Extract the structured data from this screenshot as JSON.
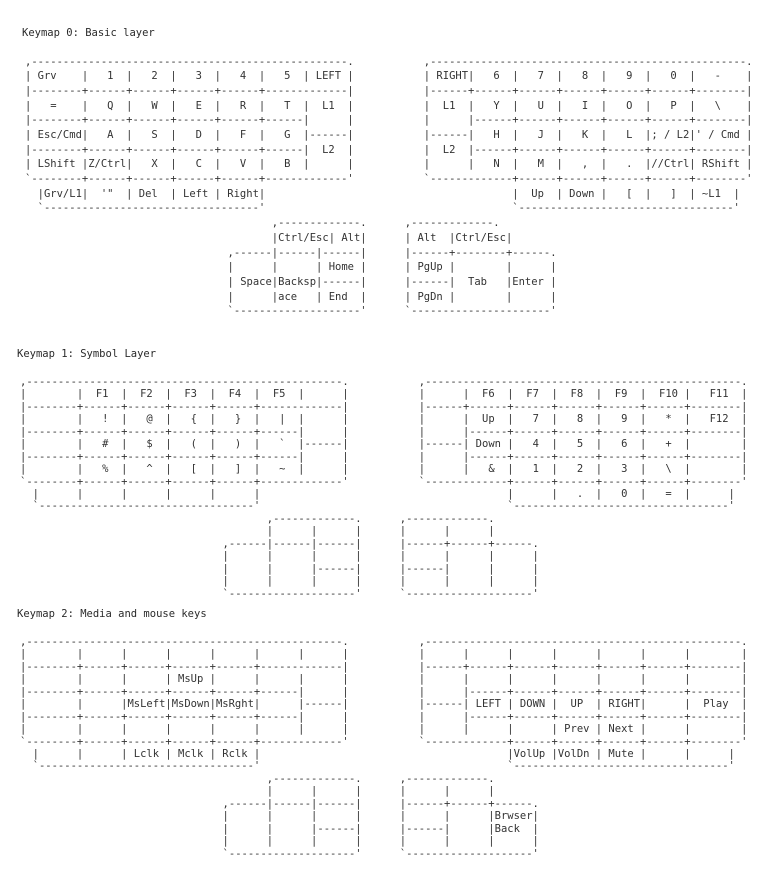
{
  "layers": [
    {
      "title": "Keymap 0: Basic layer",
      "left_hand": [
        ",--------------------------------------------------.",
        "| Grv    |   1  |   2  |   3  |   4  |   5  | LEFT |",
        "|--------+------+------+------+------+-------------|",
        "|   =    |   Q  |   W  |   E  |   R  |   T  |  L1  |",
        "|--------+------+------+------+------+------|      |",
        "| Esc/Cmd|   A  |   S  |   D  |   F  |   G  |------|",
        "|--------+------+------+------+------+------|  L2  |",
        "| LShift |Z/Ctrl|   X  |   C  |   V  |   B  |      |",
        "`--------+------+------+------+------+-------------'",
        "  |Grv/L1|  '\"  | Del  | Left | Right|",
        "  `----------------------------------'"
      ],
      "right_hand": [
        ",--------------------------------------------------.",
        "| RIGHT|   6  |   7  |   8  |   9  |   0  |   -    |",
        "|------+------+------+------+------+------+--------|",
        "|  L1  |   Y  |   U  |   I  |   O  |   P  |   \\    |",
        "|      |------+------+------+------+------+--------|",
        "|------|   H  |   J  |   K  |   L  |; / L2|' / Cmd |",
        "|  L2  |------+------+------+------+------+--------|",
        "|      |   N  |   M  |   ,  |   .  |//Ctrl| RShift |",
        "`-------------+------+------+------+------+--------'",
        "              |  Up  | Down |   [  |   ]  | ~L1  |",
        "              `----------------------------------'"
      ],
      "left_thumb": [
        "       ,-------------.",
        "       |Ctrl/Esc| Alt|",
        ",------|------|------|",
        "|      |      | Home |",
        "| Space|Backsp|------|",
        "|      |ace   | End  |",
        "`--------------------'"
      ],
      "right_thumb": [
        ",-------------.",
        "| Alt  |Ctrl/Esc|",
        "|------+--------+------.",
        "| PgUp |        |      |",
        "|------|  Tab   |Enter |",
        "| PgDn |        |      |",
        "`----------------------'"
      ]
    },
    {
      "title": "Keymap 1: Symbol Layer",
      "left_hand": [
        ",--------------------------------------------------.",
        "|        |  F1  |  F2  |  F3  |  F4  |  F5  |      |",
        "|--------+------+------+------+------+-------------|",
        "|        |   !  |   @  |   {  |   }  |   |  |      |",
        "|--------+------+------+------+------+------|      |",
        "|        |   #  |   $  |   (  |   )  |   `  |------|",
        "|--------+------+------+------+------+------|      |",
        "|        |   %  |   ^  |   [  |   ]  |   ~  |      |",
        "`--------+------+------+------+------+-------------'",
        "  |      |      |      |      |      |",
        "  `----------------------------------'"
      ],
      "right_hand": [
        ",--------------------------------------------------.",
        "|      |  F6  |  F7  |  F8  |  F9  |  F10 |   F11  |",
        "|------+------+------+------+------+------+--------|",
        "|      |  Up  |   7  |   8  |   9  |   *  |   F12  |",
        "|      |------+------+------+------+------+--------|",
        "|------| Down |   4  |   5  |   6  |   +  |        |",
        "|      |------+------+------+------+------+--------|",
        "|      |   &  |   1  |   2  |   3  |   \\  |        |",
        "`-------------+------+------+------+------+--------'",
        "              |      |   .  |   0  |   =  |      |",
        "              `----------------------------------'"
      ],
      "left_thumb": [
        "       ,-------------.",
        "       |      |      |",
        ",------|------|------|",
        "|      |      |      |",
        "|      |      |------|",
        "|      |      |      |",
        "`--------------------'"
      ],
      "right_thumb": [
        ",-------------.",
        "|      |      |",
        "|------+------+------.",
        "|      |      |      |",
        "|------|      |      |",
        "|      |      |      |",
        "`--------------------'"
      ]
    },
    {
      "title": "Keymap 2: Media and mouse keys",
      "left_hand": [
        ",--------------------------------------------------.",
        "|        |      |      |      |      |      |      |",
        "|--------+------+------+------+------+-------------|",
        "|        |      |      | MsUp |      |      |      |",
        "|--------+------+------+------+------+------|      |",
        "|        |      |MsLeft|MsDown|MsRght|      |------|",
        "|--------+------+------+------+------+------|      |",
        "|        |      |      |      |      |      |      |",
        "`--------+------+------+------+------+-------------'",
        "  |      |      | Lclk | Mclk | Rclk |",
        "  `----------------------------------'"
      ],
      "right_hand": [
        ",--------------------------------------------------.",
        "|      |      |      |      |      |      |        |",
        "|------+------+------+------+------+------+--------|",
        "|      |      |      |      |      |      |        |",
        "|      |------+------+------+------+------+--------|",
        "|------| LEFT | DOWN |  UP  | RIGHT|      |  Play  |",
        "|      |------+------+------+------+------+--------|",
        "|      |      |      | Prev | Next |      |        |",
        "`-------------+------+------+------+------+--------'",
        "              |VolUp |VolDn | Mute |      |      |",
        "              `----------------------------------'"
      ],
      "left_thumb": [
        "       ,-------------.",
        "       |      |      |",
        ",------|------|------|",
        "|      |      |      |",
        "|      |      |------|",
        "|      |      |      |",
        "`--------------------'"
      ],
      "right_thumb": [
        ",-------------.",
        "|      |      |",
        "|------+------+------.",
        "|      |      |Brwser|",
        "|------|      |Back  |",
        "|      |      |      |",
        "`--------------------'"
      ]
    }
  ]
}
